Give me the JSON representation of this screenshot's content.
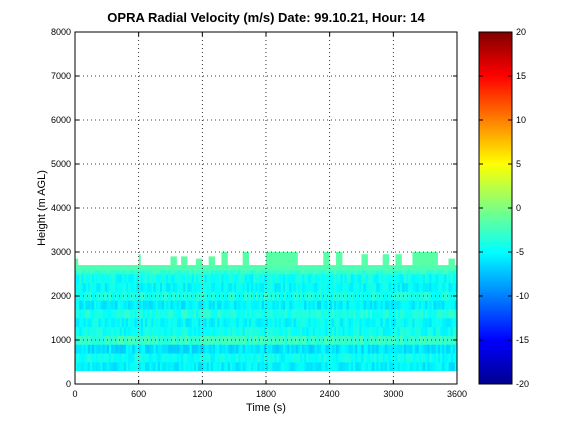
{
  "chart_data": {
    "type": "heatmap",
    "title": "OPRA Radial Velocity (m/s)  Date: 99.10.21, Hour: 14",
    "xlabel": "Time (s)",
    "ylabel": "Height (m AGL)",
    "xlim": [
      0,
      3600
    ],
    "ylim": [
      0,
      8000
    ],
    "x_ticks": [
      "0",
      "600",
      "1200",
      "1800",
      "2400",
      "3000",
      "3600"
    ],
    "y_ticks": [
      "0",
      "1000",
      "2000",
      "3000",
      "4000",
      "5000",
      "6000",
      "7000",
      "8000"
    ],
    "grid": true,
    "colorbar": {
      "colormap": "jet",
      "range": [
        -20,
        20
      ],
      "ticks": [
        "20",
        "15",
        "10",
        "5",
        "0",
        "-5",
        "-10",
        "-15",
        "-20"
      ]
    },
    "data_extent": {
      "height_bottom_m": 300,
      "height_top_typical_m": 2700,
      "height_top_max_m": 3000
    },
    "height_bands": [
      {
        "from": 300,
        "to": 500,
        "value": -5.5
      },
      {
        "from": 500,
        "to": 700,
        "value": -4.5
      },
      {
        "from": 700,
        "to": 900,
        "value": -6.0
      },
      {
        "from": 900,
        "to": 1100,
        "value": -3.0
      },
      {
        "from": 1100,
        "to": 1300,
        "value": -4.5
      },
      {
        "from": 1300,
        "to": 1500,
        "value": -5.0
      },
      {
        "from": 1500,
        "to": 1700,
        "value": -4.0
      },
      {
        "from": 1700,
        "to": 1900,
        "value": -5.5
      },
      {
        "from": 1900,
        "to": 2100,
        "value": -4.0
      },
      {
        "from": 2100,
        "to": 2300,
        "value": -5.0
      },
      {
        "from": 2300,
        "to": 2500,
        "value": -4.5
      },
      {
        "from": 2500,
        "to": 2700,
        "value": -3.0
      }
    ],
    "top_spikes": [
      {
        "time_from": 1800,
        "time_to": 2100,
        "top": 3000
      },
      {
        "time_from": 1380,
        "time_to": 1440,
        "top": 3000
      },
      {
        "time_from": 1580,
        "time_to": 1640,
        "top": 3000
      },
      {
        "time_from": 3180,
        "time_to": 3420,
        "top": 3000
      },
      {
        "time_from": 2340,
        "time_to": 2400,
        "top": 3000
      },
      {
        "time_from": 2460,
        "time_to": 2520,
        "top": 3000
      },
      {
        "time_from": 2700,
        "time_to": 2760,
        "top": 2950
      },
      {
        "time_from": 600,
        "time_to": 620,
        "top": 2950
      },
      {
        "time_from": 900,
        "time_to": 960,
        "top": 2900
      },
      {
        "time_from": 1000,
        "time_to": 1060,
        "top": 2900
      },
      {
        "time_from": 1260,
        "time_to": 1320,
        "top": 2900
      },
      {
        "time_from": 1140,
        "time_to": 1200,
        "top": 2850
      },
      {
        "time_from": 2900,
        "time_to": 2960,
        "top": 2950
      },
      {
        "time_from": 3020,
        "time_to": 3080,
        "top": 2950
      },
      {
        "time_from": 3520,
        "time_to": 3580,
        "top": 2850
      },
      {
        "time_from": 0,
        "time_to": 30,
        "top": 2850
      }
    ],
    "top_band_value": -2.0,
    "spike_value": -1.5
  }
}
